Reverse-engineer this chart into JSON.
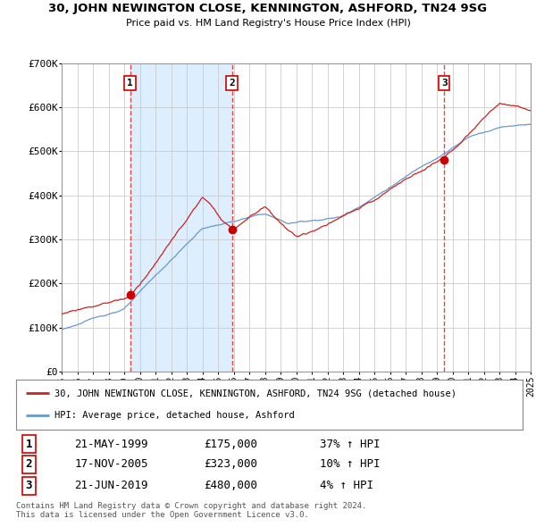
{
  "title": "30, JOHN NEWINGTON CLOSE, KENNINGTON, ASHFORD, TN24 9SG",
  "subtitle": "Price paid vs. HM Land Registry's House Price Index (HPI)",
  "ylim": [
    0,
    700000
  ],
  "yticks": [
    0,
    100000,
    200000,
    300000,
    400000,
    500000,
    600000,
    700000
  ],
  "ytick_labels": [
    "£0",
    "£100K",
    "£200K",
    "£300K",
    "£400K",
    "£500K",
    "£600K",
    "£700K"
  ],
  "xmin": 1995,
  "xmax": 2025,
  "sale_dates": [
    1999.38,
    2005.89,
    2019.47
  ],
  "sale_prices": [
    175000,
    323000,
    480000
  ],
  "sale_labels": [
    "1",
    "2",
    "3"
  ],
  "vline_color": "#dd3333",
  "sale_dot_color": "#cc0000",
  "sale_line_color": "#cc2222",
  "hpi_line_color": "#6699cc",
  "shaded_region_color": "#ddeeff",
  "legend_label_sale": "30, JOHN NEWINGTON CLOSE, KENNINGTON, ASHFORD, TN24 9SG (detached house)",
  "legend_label_hpi": "HPI: Average price, detached house, Ashford",
  "table_rows": [
    [
      "1",
      "21-MAY-1999",
      "£175,000",
      "37% ↑ HPI"
    ],
    [
      "2",
      "17-NOV-2005",
      "£323,000",
      "10% ↑ HPI"
    ],
    [
      "3",
      "21-JUN-2019",
      "£480,000",
      "4% ↑ HPI"
    ]
  ],
  "footer": "Contains HM Land Registry data © Crown copyright and database right 2024.\nThis data is licensed under the Open Government Licence v3.0.",
  "background_color": "#ffffff",
  "grid_color": "#cccccc"
}
